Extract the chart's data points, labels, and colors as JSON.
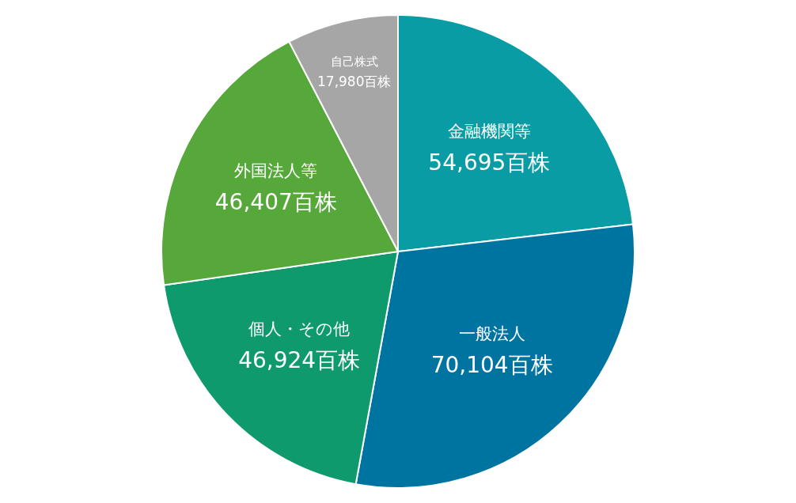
{
  "chart_data": {
    "type": "pie",
    "categories": [
      "金融機関等",
      "一般法人",
      "個人・その他",
      "外国法人等",
      "自己株式"
    ],
    "values": [
      54695,
      70104,
      46924,
      46407,
      17980
    ],
    "colors": [
      "#0a9ca4",
      "#0074a0",
      "#0f9a6e",
      "#57a83a",
      "#a6a6a6"
    ],
    "value_labels": [
      "54,695百株",
      "70,104百株",
      "46,924百株",
      "46,407百株",
      "17,980百株"
    ],
    "legend": false
  }
}
